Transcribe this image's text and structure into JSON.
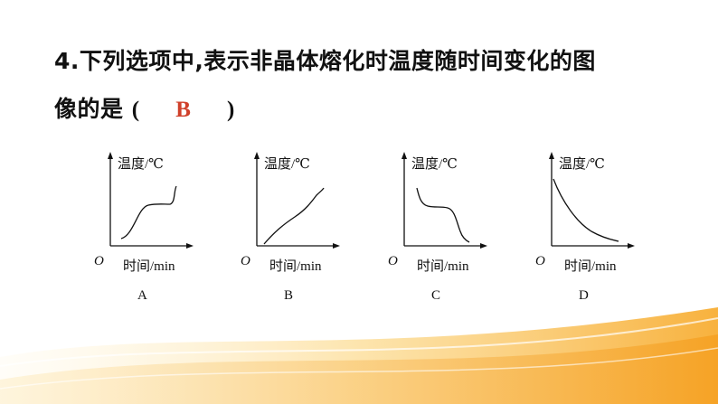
{
  "question": {
    "line1": "4.下列选项中,表示非晶体熔化时温度随时间变化的图",
    "line2_prefix": "像的是",
    "paren_open": "(",
    "answer": "B",
    "paren_close": ")"
  },
  "graphs": [
    {
      "letter": "A",
      "ylabel": "温度/℃",
      "xlabel": "时间/min",
      "origin": "O"
    },
    {
      "letter": "B",
      "ylabel": "温度/℃",
      "xlabel": "时间/min",
      "origin": "O"
    },
    {
      "letter": "C",
      "ylabel": "温度/℃",
      "xlabel": "时间/min",
      "origin": "O"
    },
    {
      "letter": "D",
      "ylabel": "温度/℃",
      "xlabel": "时间/min",
      "origin": "O"
    }
  ],
  "colors": {
    "answer": "#d0402a",
    "axis": "#111111",
    "wave": "#f6b53c"
  }
}
